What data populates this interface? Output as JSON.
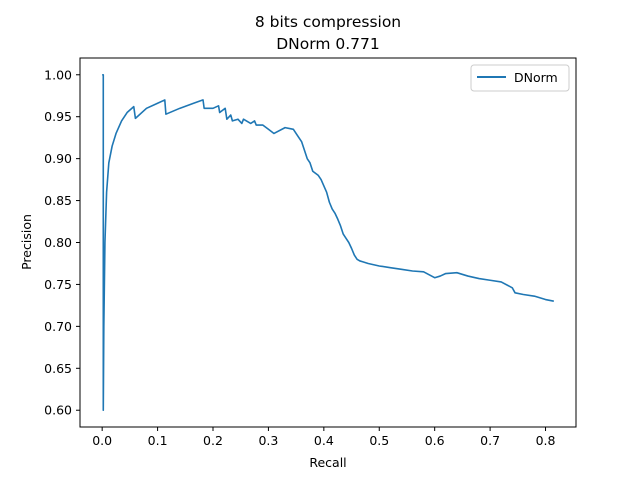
{
  "chart_data": {
    "type": "line",
    "title": "8 bits compression",
    "subtitle": "DNorm 0.771",
    "xlabel": "Recall",
    "ylabel": "Precision",
    "xlim": [
      -0.04,
      0.855
    ],
    "ylim": [
      0.58,
      1.02
    ],
    "x_ticks": [
      "0.0",
      "0.1",
      "0.2",
      "0.3",
      "0.4",
      "0.5",
      "0.6",
      "0.7",
      "0.8"
    ],
    "x_tick_values": [
      0.0,
      0.1,
      0.2,
      0.3,
      0.4,
      0.5,
      0.6,
      0.7,
      0.8
    ],
    "y_ticks": [
      "0.60",
      "0.65",
      "0.70",
      "0.75",
      "0.80",
      "0.85",
      "0.90",
      "0.95",
      "1.00"
    ],
    "y_tick_values": [
      0.6,
      0.65,
      0.7,
      0.75,
      0.8,
      0.85,
      0.9,
      0.95,
      1.0
    ],
    "grid": false,
    "legend_position": "top-right",
    "series": [
      {
        "name": "DNorm",
        "color": "#1f77b4",
        "x": [
          0.0,
          0.002,
          0.002,
          0.003,
          0.005,
          0.008,
          0.012,
          0.018,
          0.025,
          0.035,
          0.045,
          0.057,
          0.06,
          0.08,
          0.1,
          0.113,
          0.115,
          0.14,
          0.165,
          0.182,
          0.184,
          0.2,
          0.21,
          0.212,
          0.222,
          0.225,
          0.232,
          0.235,
          0.245,
          0.252,
          0.255,
          0.268,
          0.275,
          0.278,
          0.29,
          0.3,
          0.31,
          0.33,
          0.345,
          0.352,
          0.36,
          0.365,
          0.37,
          0.375,
          0.38,
          0.39,
          0.395,
          0.405,
          0.41,
          0.415,
          0.42,
          0.425,
          0.43,
          0.435,
          0.44,
          0.445,
          0.45,
          0.455,
          0.46,
          0.465,
          0.47,
          0.48,
          0.5,
          0.52,
          0.54,
          0.56,
          0.58,
          0.6,
          0.61,
          0.62,
          0.64,
          0.66,
          0.68,
          0.7,
          0.72,
          0.74,
          0.745,
          0.76,
          0.78,
          0.8,
          0.815
        ],
        "y": [
          1.0,
          1.0,
          0.6,
          0.7,
          0.8,
          0.86,
          0.895,
          0.915,
          0.93,
          0.945,
          0.955,
          0.962,
          0.948,
          0.96,
          0.966,
          0.97,
          0.953,
          0.96,
          0.966,
          0.97,
          0.96,
          0.96,
          0.963,
          0.955,
          0.96,
          0.947,
          0.952,
          0.945,
          0.947,
          0.942,
          0.947,
          0.942,
          0.945,
          0.94,
          0.94,
          0.935,
          0.93,
          0.937,
          0.935,
          0.928,
          0.92,
          0.91,
          0.9,
          0.895,
          0.885,
          0.88,
          0.875,
          0.86,
          0.848,
          0.84,
          0.835,
          0.828,
          0.82,
          0.81,
          0.805,
          0.8,
          0.793,
          0.785,
          0.78,
          0.778,
          0.777,
          0.775,
          0.772,
          0.77,
          0.768,
          0.766,
          0.765,
          0.758,
          0.76,
          0.763,
          0.764,
          0.76,
          0.757,
          0.755,
          0.753,
          0.746,
          0.74,
          0.738,
          0.736,
          0.732,
          0.73
        ]
      }
    ]
  }
}
